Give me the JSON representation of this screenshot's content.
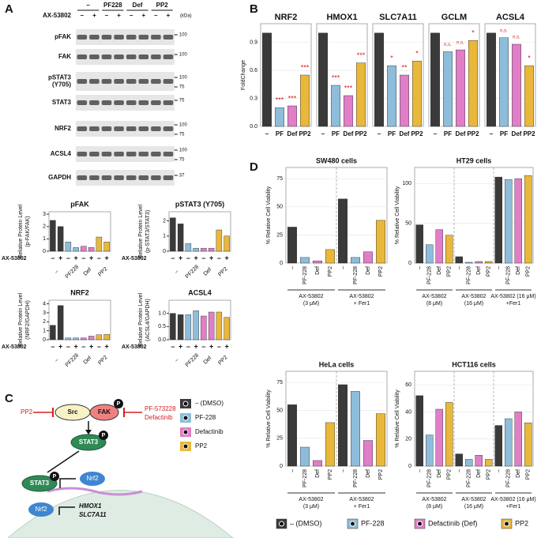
{
  "panels": {
    "a": "A",
    "b": "B",
    "c": "C",
    "d": "D"
  },
  "blot": {
    "groups": [
      "–",
      "PF228",
      "Def",
      "PP2"
    ],
    "treatment": "AX-53802",
    "signs": [
      "–",
      "+"
    ],
    "unit": "(kDa)",
    "rows": [
      {
        "label": "pFAK",
        "markers": [
          100
        ]
      },
      {
        "label": "FAK",
        "markers": [
          100
        ]
      },
      {
        "label": "pSTAT3\n(Y705)",
        "markers": [
          100,
          75
        ]
      },
      {
        "label": "STAT3",
        "markers": [
          75
        ]
      },
      {
        "label": "NRF2",
        "markers": [
          100,
          75
        ]
      },
      {
        "label": "ACSL4",
        "markers": [
          100,
          75
        ]
      },
      {
        "label": "GAPDH",
        "markers": [
          37
        ]
      }
    ]
  },
  "diagram": {
    "pp2": "PP2",
    "src": "Src",
    "fak": "FAK",
    "p": "P",
    "pf": "PF-573228",
    "def": "Defactinib",
    "stat3": "STAT3",
    "nrf2": "Nrf2",
    "targets": [
      "HMOX1",
      "SLC7A11"
    ],
    "legend": [
      "– (DMSO)",
      "PF-228",
      "Defactinib",
      "PP2"
    ]
  },
  "legend": {
    "items": [
      {
        "name": "– (DMSO)",
        "color": "#3a3a3a"
      },
      {
        "name": "PF-228",
        "color": "#8ebddb"
      },
      {
        "name": "Defactinib (Def)",
        "color": "#e07ec8"
      },
      {
        "name": "PP2",
        "color": "#e9b83b"
      }
    ]
  },
  "chart_data": [
    {
      "type": "bar",
      "title": "pFAK",
      "ylabel": [
        "Relative Protein Level",
        "(p-FAK/FAK)"
      ],
      "ylim": [
        0,
        3.2
      ],
      "yticks": [
        0,
        1,
        2,
        3
      ],
      "x_row_label": "AX-53802",
      "signs": [
        "–",
        "+"
      ],
      "groups": [
        {
          "label": "–",
          "values": [
            2.5,
            2.0
          ]
        },
        {
          "label": "PF228",
          "values": [
            0.75,
            0.3
          ]
        },
        {
          "label": "Def",
          "values": [
            0.4,
            0.3
          ]
        },
        {
          "label": "PP2",
          "values": [
            1.15,
            0.75
          ]
        }
      ]
    },
    {
      "type": "bar",
      "title": "pSTAT3 (Y705)",
      "ylabel": [
        "Relative Protein Level",
        "(p-STAT3/STAT3)"
      ],
      "ylim": [
        0,
        2.6
      ],
      "yticks": [
        0,
        1,
        2
      ],
      "x_row_label": "AX-53802",
      "signs": [
        "–",
        "+"
      ],
      "groups": [
        {
          "label": "–",
          "values": [
            2.2,
            1.8
          ]
        },
        {
          "label": "PF228",
          "values": [
            0.5,
            0.2
          ]
        },
        {
          "label": "Def",
          "values": [
            0.2,
            0.2
          ]
        },
        {
          "label": "PP2",
          "values": [
            1.4,
            1.0
          ]
        }
      ]
    },
    {
      "type": "bar",
      "title": "NRF2",
      "ylabel": [
        "Relative Protein Level",
        "(NRF2/GAPDH)"
      ],
      "ylim": [
        0,
        4.4
      ],
      "yticks": [
        0,
        1,
        2,
        3,
        4
      ],
      "x_row_label": "AX-53802",
      "signs": [
        "–",
        "+"
      ],
      "groups": [
        {
          "label": "–",
          "values": [
            1.6,
            3.8
          ]
        },
        {
          "label": "PF228",
          "values": [
            0.2,
            0.2
          ]
        },
        {
          "label": "Def",
          "values": [
            0.2,
            0.4
          ]
        },
        {
          "label": "PP2",
          "values": [
            0.55,
            0.6
          ]
        }
      ]
    },
    {
      "type": "bar",
      "title": "ACSL4",
      "ylabel": [
        "Relative Protein Level",
        "(ACSL4/GAPDH)"
      ],
      "ylim": [
        0,
        1.5
      ],
      "yticks": [
        {
          "value": 0,
          "label": "0.0"
        },
        0.5,
        {
          "value": 1,
          "label": "1.0"
        }
      ],
      "x_row_label": "AX-53802",
      "signs": [
        "–",
        "+"
      ],
      "groups": [
        {
          "label": "–",
          "values": [
            1.0,
            0.95
          ]
        },
        {
          "label": "PF228",
          "values": [
            0.95,
            1.1
          ]
        },
        {
          "label": "Def",
          "values": [
            0.9,
            1.05
          ]
        },
        {
          "label": "PP2",
          "values": [
            1.05,
            0.85
          ]
        }
      ]
    },
    {
      "type": "bar",
      "title": "NRF2",
      "ylabel": [
        "FoldChange"
      ],
      "ylim": [
        0,
        1.1
      ],
      "yticks": [
        {
          "value": 0,
          "label": "0.0"
        },
        0.3,
        0.6,
        0.9
      ],
      "grid": true,
      "categories": [
        "–",
        "PF",
        "Def",
        "PP2"
      ],
      "groups": [
        {
          "values": [
            1,
            0.2,
            0.22,
            0.55
          ]
        }
      ],
      "sig": [
        null,
        "***",
        "***",
        "***"
      ]
    },
    {
      "type": "bar",
      "title": "HMOX1",
      "ylim": [
        0,
        1.1
      ],
      "yticks": [
        {
          "value": 0,
          "label": "0.0"
        },
        0.3,
        0.6,
        0.9
      ],
      "grid": true,
      "categories": [
        "–",
        "PF",
        "Def",
        "PP2"
      ],
      "groups": [
        {
          "values": [
            1,
            0.44,
            0.33,
            0.68
          ]
        }
      ],
      "sig": [
        null,
        "***",
        "***",
        "***"
      ]
    },
    {
      "type": "bar",
      "title": "SLC7A11",
      "ylim": [
        0,
        1.1
      ],
      "yticks": [
        {
          "value": 0,
          "label": "0.0"
        },
        0.3,
        0.6,
        0.9
      ],
      "grid": true,
      "categories": [
        "–",
        "PF",
        "Def",
        "PP2"
      ],
      "groups": [
        {
          "values": [
            1,
            0.65,
            0.55,
            0.7
          ]
        }
      ],
      "sig": [
        null,
        "*",
        "**",
        "*"
      ]
    },
    {
      "type": "bar",
      "title": "GCLM",
      "ylim": [
        0,
        1.1
      ],
      "yticks": [
        {
          "value": 0,
          "label": "0.0"
        },
        0.3,
        0.6,
        0.9
      ],
      "grid": true,
      "categories": [
        "–",
        "PF",
        "Def",
        "PP2"
      ],
      "groups": [
        {
          "values": [
            1,
            0.8,
            0.82,
            0.92
          ]
        }
      ],
      "sig": [
        null,
        "n.s.",
        "n.s.",
        "*"
      ]
    },
    {
      "type": "bar",
      "title": "ACSL4",
      "ylim": [
        0,
        1.1
      ],
      "yticks": [
        {
          "value": 0,
          "label": "0.0"
        },
        0.3,
        0.6,
        0.9
      ],
      "grid": true,
      "categories": [
        "–",
        "PF",
        "Def",
        "PP2"
      ],
      "groups": [
        {
          "values": [
            1,
            0.95,
            0.88,
            0.65
          ]
        }
      ],
      "sig": [
        null,
        "n.s.",
        "n.s.",
        "*"
      ]
    },
    {
      "type": "bar",
      "title": "SW480 cells",
      "ylabel": [
        "% Relative Cell Viability"
      ],
      "ylim": [
        0,
        85
      ],
      "yticks": [
        0,
        25,
        50,
        75
      ],
      "grid": true,
      "categories": [
        "–",
        "PF-228",
        "Def",
        "PP2"
      ],
      "groups": [
        {
          "label": [
            "AX-53802",
            "(3 μM)"
          ],
          "values": [
            32,
            5,
            2,
            12
          ]
        },
        {
          "label": [
            "AX-53802",
            "+ Fer1"
          ],
          "values": [
            57,
            5,
            10,
            38
          ]
        }
      ]
    },
    {
      "type": "bar",
      "title": "HT29 cells",
      "ylabel": [
        "% Relative Cell Viability"
      ],
      "ylim": [
        0,
        120
      ],
      "yticks": [
        0,
        50,
        100
      ],
      "grid": true,
      "categories": [
        "–",
        "PF-228",
        "Def",
        "PP2"
      ],
      "groups": [
        {
          "label": [
            "AX-53802",
            "(8 μM)"
          ],
          "values": [
            48,
            23,
            42,
            35
          ]
        },
        {
          "label": [
            "AX-53802",
            "(16 μM)"
          ],
          "values": [
            8,
            1,
            2,
            2
          ]
        },
        {
          "label": [
            "AX-53802 (16 μM)",
            "+Fer1"
          ],
          "values": [
            108,
            105,
            106,
            110
          ]
        }
      ]
    },
    {
      "type": "bar",
      "title": "HeLa cells",
      "ylabel": [
        "% Relative Cell Viability"
      ],
      "ylim": [
        0,
        85
      ],
      "yticks": [
        0,
        25,
        50,
        75
      ],
      "grid": true,
      "categories": [
        "–",
        "PF-228",
        "Def",
        "PP2"
      ],
      "groups": [
        {
          "label": [
            "AX-53802",
            "(3 μM)"
          ],
          "values": [
            55,
            17,
            5,
            39
          ]
        },
        {
          "label": [
            "AX-53802",
            "+ Fer1"
          ],
          "values": [
            73,
            67,
            23,
            47
          ]
        }
      ]
    },
    {
      "type": "bar",
      "title": "HCT116 cells",
      "ylabel": [
        "% Relative Cell Viability"
      ],
      "ylim": [
        0,
        70
      ],
      "yticks": [
        0,
        20,
        40,
        60
      ],
      "grid": true,
      "categories": [
        "–",
        "PF-228",
        "Def",
        "PP2"
      ],
      "groups": [
        {
          "label": [
            "AX-53802",
            "(8 μM)"
          ],
          "values": [
            52,
            23,
            42,
            47
          ]
        },
        {
          "label": [
            "AX-53802",
            "(16 μM)"
          ],
          "values": [
            9,
            5,
            8,
            5
          ]
        },
        {
          "label": [
            "AX-53802 (16 μM)",
            "+Fer1"
          ],
          "values": [
            30,
            35,
            40,
            32
          ]
        }
      ]
    }
  ]
}
